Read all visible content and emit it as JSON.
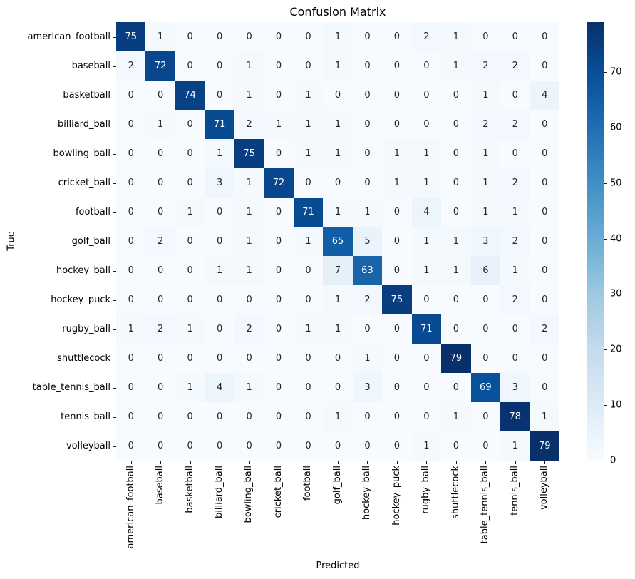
{
  "chart_data": {
    "type": "heatmap",
    "title": "Confusion Matrix",
    "xlabel": "Predicted",
    "ylabel": "True",
    "colormap": "Blues",
    "vmin": 0,
    "vmax": 79,
    "categories": [
      "american_football",
      "baseball",
      "basketball",
      "billiard_ball",
      "bowling_ball",
      "cricket_ball",
      "football",
      "golf_ball",
      "hockey_ball",
      "hockey_puck",
      "rugby_ball",
      "shuttlecock",
      "table_tennis_ball",
      "tennis_ball",
      "volleyball"
    ],
    "matrix": [
      [
        75,
        1,
        0,
        0,
        0,
        0,
        0,
        1,
        0,
        0,
        2,
        1,
        0,
        0,
        0
      ],
      [
        2,
        72,
        0,
        0,
        1,
        0,
        0,
        1,
        0,
        0,
        0,
        1,
        2,
        2,
        0
      ],
      [
        0,
        0,
        74,
        0,
        1,
        0,
        1,
        0,
        0,
        0,
        0,
        0,
        1,
        0,
        4
      ],
      [
        0,
        1,
        0,
        71,
        2,
        1,
        1,
        1,
        0,
        0,
        0,
        0,
        2,
        2,
        0
      ],
      [
        0,
        0,
        0,
        1,
        75,
        0,
        1,
        1,
        0,
        1,
        1,
        0,
        1,
        0,
        0
      ],
      [
        0,
        0,
        0,
        3,
        1,
        72,
        0,
        0,
        0,
        1,
        1,
        0,
        1,
        2,
        0
      ],
      [
        0,
        0,
        1,
        0,
        1,
        0,
        71,
        1,
        1,
        0,
        4,
        0,
        1,
        1,
        0
      ],
      [
        0,
        2,
        0,
        0,
        1,
        0,
        1,
        65,
        5,
        0,
        1,
        1,
        3,
        2,
        0
      ],
      [
        0,
        0,
        0,
        1,
        1,
        0,
        0,
        7,
        63,
        0,
        1,
        1,
        6,
        1,
        0
      ],
      [
        0,
        0,
        0,
        0,
        0,
        0,
        0,
        1,
        2,
        75,
        0,
        0,
        0,
        2,
        0
      ],
      [
        1,
        2,
        1,
        0,
        2,
        0,
        1,
        1,
        0,
        0,
        71,
        0,
        0,
        0,
        2
      ],
      [
        0,
        0,
        0,
        0,
        0,
        0,
        0,
        0,
        1,
        0,
        0,
        79,
        0,
        0,
        0
      ],
      [
        0,
        0,
        1,
        4,
        1,
        0,
        0,
        0,
        3,
        0,
        0,
        0,
        69,
        3,
        0
      ],
      [
        0,
        0,
        0,
        0,
        0,
        0,
        0,
        1,
        0,
        0,
        0,
        1,
        0,
        78,
        1
      ],
      [
        0,
        0,
        0,
        0,
        0,
        0,
        0,
        0,
        0,
        0,
        1,
        0,
        0,
        1,
        79
      ]
    ],
    "colorbar_ticks": [
      0,
      10,
      20,
      30,
      40,
      50,
      60,
      70
    ],
    "colors": {
      "colormap_stops": [
        "#f7fbff",
        "#deebf7",
        "#c6dbef",
        "#9ecae1",
        "#6baed6",
        "#4292c6",
        "#2171b5",
        "#08519c",
        "#08306b"
      ],
      "annotation_light": "#ffffff",
      "annotation_dark": "#262626",
      "tick_mark": "#1a1a1a"
    },
    "layout": {
      "grid": "off",
      "legend": "colorbar-right",
      "x_tick_rotation_deg": 90
    }
  }
}
